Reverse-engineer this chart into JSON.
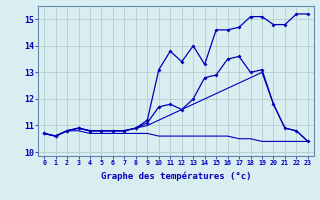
{
  "xlabel": "Graphe des températures (°c)",
  "hours": [
    0,
    1,
    2,
    3,
    4,
    5,
    6,
    7,
    8,
    9,
    10,
    11,
    12,
    13,
    14,
    15,
    16,
    17,
    18,
    19,
    20,
    21,
    22,
    23
  ],
  "line_flat": [
    10.7,
    10.6,
    10.8,
    10.8,
    10.7,
    10.7,
    10.7,
    10.7,
    10.7,
    10.7,
    10.6,
    10.6,
    10.6,
    10.6,
    10.6,
    10.6,
    10.6,
    10.5,
    10.5,
    10.4,
    10.4,
    10.4,
    10.4,
    10.4
  ],
  "line_slow": [
    10.7,
    10.6,
    10.8,
    10.9,
    10.8,
    10.8,
    10.8,
    10.8,
    10.9,
    11.0,
    11.2,
    11.4,
    11.6,
    11.8,
    12.0,
    12.2,
    12.4,
    12.6,
    12.8,
    13.0,
    11.8,
    10.9,
    10.8,
    10.4
  ],
  "line_mid": [
    10.7,
    10.6,
    10.8,
    10.9,
    10.8,
    10.8,
    10.8,
    10.8,
    10.9,
    11.1,
    11.7,
    11.8,
    11.6,
    12.0,
    12.8,
    12.9,
    13.5,
    13.6,
    13.0,
    13.1,
    11.8,
    10.9,
    10.8,
    10.4
  ],
  "line_top": [
    10.7,
    10.6,
    10.8,
    10.9,
    10.8,
    10.8,
    10.8,
    10.8,
    10.9,
    11.2,
    13.1,
    13.8,
    13.4,
    14.0,
    13.3,
    14.6,
    14.6,
    14.7,
    15.1,
    15.1,
    14.8,
    14.8,
    15.2,
    15.2
  ],
  "bg_color": "#d8eef0",
  "line_color": "#0000bb",
  "grid_color": "#b0c8cc",
  "ylim": [
    9.85,
    15.5
  ],
  "yticks": [
    10,
    11,
    12,
    13,
    14,
    15
  ],
  "xlim": [
    -0.5,
    23.5
  ],
  "marker": "D",
  "markersize": 2.0
}
